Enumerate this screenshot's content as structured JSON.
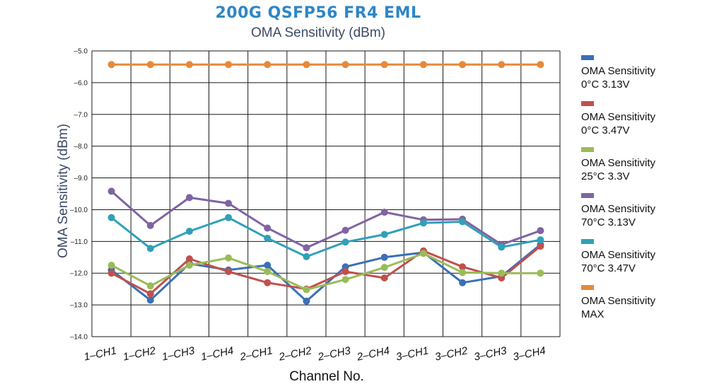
{
  "chart_data": {
    "type": "line",
    "title": "200G QSFP56 FR4 EML",
    "subtitle": "OMA Sensitivity (dBm)",
    "xlabel": "Channel No.",
    "ylabel": "OMA Sensitivity (dBm)",
    "ylim": [
      -14.0,
      -5.0
    ],
    "yticks": [
      "-5.0",
      "-6.0",
      "-7.0",
      "-8.0",
      "-9.0",
      "-10.0",
      "-11.0",
      "-12.0",
      "-13.0",
      "-14.0"
    ],
    "grid": true,
    "legend_position": "right",
    "categories": [
      "1-CH1",
      "1-CH2",
      "1-CH3",
      "1-CH4",
      "2-CH1",
      "2-CH2",
      "2-CH3",
      "2-CH4",
      "3-CH1",
      "3-CH2",
      "3-CH3",
      "3-CH4"
    ],
    "series": [
      {
        "name": "OMA Sensitivity\n0°C 3.13V",
        "color": "#3b6fb6",
        "values": [
          -11.9,
          -12.85,
          -11.7,
          -11.9,
          -11.75,
          -12.88,
          -11.8,
          -11.5,
          -11.35,
          -12.3,
          -12.1,
          -11.1
        ]
      },
      {
        "name": "OMA Sensitivity\n0°C 3.47V",
        "color": "#c0504d",
        "values": [
          -12.0,
          -12.65,
          -11.55,
          -11.95,
          -12.3,
          -12.5,
          -11.95,
          -12.15,
          -11.3,
          -11.8,
          -12.15,
          -11.15
        ]
      },
      {
        "name": "OMA Sensitivity\n25°C 3.3V",
        "color": "#9bbb59",
        "values": [
          -11.75,
          -12.4,
          -11.75,
          -11.52,
          -11.95,
          -12.52,
          -12.2,
          -11.82,
          -11.38,
          -11.98,
          -12.0,
          -12.0
        ]
      },
      {
        "name": "OMA Sensitivity\n70°C 3.13V",
        "color": "#8064a2",
        "values": [
          -9.42,
          -10.5,
          -9.62,
          -9.8,
          -10.58,
          -11.2,
          -10.65,
          -10.08,
          -10.32,
          -10.3,
          -11.1,
          -10.66
        ]
      },
      {
        "name": "OMA Sensitivity\n70°C 3.47V",
        "color": "#31a0b8",
        "values": [
          -10.25,
          -11.22,
          -10.68,
          -10.25,
          -10.9,
          -11.48,
          -11.02,
          -10.78,
          -10.42,
          -10.38,
          -11.18,
          -10.95
        ]
      },
      {
        "name": "OMA Sensitivity\nMAX",
        "color": "#e6893a",
        "values": [
          -5.43,
          -5.43,
          -5.43,
          -5.43,
          -5.43,
          -5.43,
          -5.43,
          -5.43,
          -5.43,
          -5.43,
          -5.43,
          -5.43
        ]
      }
    ]
  }
}
